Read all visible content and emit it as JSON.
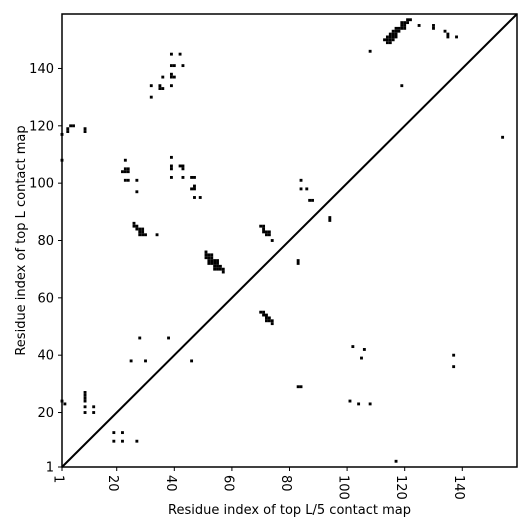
{
  "chart_data": {
    "type": "scatter",
    "title": "",
    "xlabel": "Residue index of top L/5 contact map",
    "ylabel": "Residue index of top L contact map",
    "xlim": [
      1,
      159
    ],
    "ylim": [
      1,
      159
    ],
    "xticks": [
      1,
      20,
      40,
      60,
      80,
      100,
      120,
      140
    ],
    "yticks": [
      1,
      20,
      40,
      60,
      80,
      100,
      120,
      140
    ],
    "grid": false,
    "diagonal": true,
    "marker": "square",
    "color": "#000000",
    "series": [
      {
        "name": "",
        "points": [
          [
            1,
            117
          ],
          [
            1,
            108
          ],
          [
            1,
            24
          ],
          [
            2,
            23
          ],
          [
            3,
            118
          ],
          [
            3,
            119
          ],
          [
            4,
            120
          ],
          [
            5,
            120
          ],
          [
            9,
            118
          ],
          [
            9,
            119
          ],
          [
            9,
            27
          ],
          [
            9,
            26
          ],
          [
            9,
            25
          ],
          [
            9,
            24
          ],
          [
            9,
            22
          ],
          [
            9,
            20
          ],
          [
            12,
            22
          ],
          [
            12,
            20
          ],
          [
            19,
            13
          ],
          [
            19,
            10
          ],
          [
            22,
            13
          ],
          [
            22,
            10
          ],
          [
            27,
            10
          ],
          [
            22,
            104
          ],
          [
            23,
            104
          ],
          [
            23,
            105
          ],
          [
            24,
            105
          ],
          [
            24,
            104
          ],
          [
            23,
            101
          ],
          [
            24,
            101
          ],
          [
            23,
            108
          ],
          [
            27,
            101
          ],
          [
            27,
            97
          ],
          [
            26,
            86
          ],
          [
            26,
            85
          ],
          [
            27,
            85
          ],
          [
            27,
            84
          ],
          [
            28,
            84
          ],
          [
            28,
            83
          ],
          [
            28,
            82
          ],
          [
            29,
            84
          ],
          [
            29,
            83
          ],
          [
            29,
            82
          ],
          [
            30,
            82
          ],
          [
            34,
            82
          ],
          [
            28,
            46
          ],
          [
            25,
            38
          ],
          [
            30,
            38
          ],
          [
            38,
            46
          ],
          [
            46,
            38
          ],
          [
            32,
            130
          ],
          [
            32,
            134
          ],
          [
            35,
            134
          ],
          [
            35,
            133
          ],
          [
            36,
            133
          ],
          [
            36,
            137
          ],
          [
            39,
            137
          ],
          [
            39,
            138
          ],
          [
            39,
            134
          ],
          [
            39,
            141
          ],
          [
            40,
            141
          ],
          [
            39,
            145
          ],
          [
            40,
            137
          ],
          [
            42,
            145
          ],
          [
            43,
            141
          ],
          [
            39,
            109
          ],
          [
            39,
            106
          ],
          [
            39,
            105
          ],
          [
            39,
            102
          ],
          [
            42,
            106
          ],
          [
            43,
            106
          ],
          [
            43,
            105
          ],
          [
            43,
            102
          ],
          [
            46,
            102
          ],
          [
            47,
            102
          ],
          [
            46,
            98
          ],
          [
            47,
            98
          ],
          [
            47,
            99
          ],
          [
            47,
            95
          ],
          [
            49,
            95
          ],
          [
            51,
            76
          ],
          [
            51,
            75
          ],
          [
            51,
            74
          ],
          [
            52,
            75
          ],
          [
            52,
            74
          ],
          [
            52,
            73
          ],
          [
            52,
            72
          ],
          [
            53,
            75
          ],
          [
            53,
            74
          ],
          [
            53,
            73
          ],
          [
            53,
            72
          ],
          [
            54,
            73
          ],
          [
            54,
            72
          ],
          [
            54,
            71
          ],
          [
            54,
            70
          ],
          [
            55,
            73
          ],
          [
            55,
            72
          ],
          [
            55,
            71
          ],
          [
            55,
            70
          ],
          [
            56,
            71
          ],
          [
            56,
            70
          ],
          [
            57,
            70
          ],
          [
            57,
            69
          ],
          [
            70,
            85
          ],
          [
            71,
            85
          ],
          [
            71,
            84
          ],
          [
            71,
            83
          ],
          [
            72,
            83
          ],
          [
            72,
            82
          ],
          [
            73,
            83
          ],
          [
            73,
            82
          ],
          [
            74,
            80
          ],
          [
            70,
            55
          ],
          [
            71,
            55
          ],
          [
            71,
            54
          ],
          [
            72,
            54
          ],
          [
            72,
            53
          ],
          [
            72,
            52
          ],
          [
            73,
            53
          ],
          [
            73,
            52
          ],
          [
            74,
            52
          ],
          [
            74,
            51
          ],
          [
            83,
            73
          ],
          [
            83,
            72
          ],
          [
            83,
            29
          ],
          [
            84,
            29
          ],
          [
            84,
            101
          ],
          [
            84,
            98
          ],
          [
            86,
            98
          ],
          [
            87,
            94
          ],
          [
            88,
            94
          ],
          [
            94,
            88
          ],
          [
            94,
            87
          ],
          [
            101,
            24
          ],
          [
            102,
            43
          ],
          [
            104,
            23
          ],
          [
            105,
            39
          ],
          [
            106,
            42
          ],
          [
            108,
            23
          ],
          [
            108,
            146
          ],
          [
            113,
            150
          ],
          [
            114,
            150
          ],
          [
            115,
            150
          ],
          [
            114,
            149
          ],
          [
            115,
            149
          ],
          [
            115,
            151
          ],
          [
            114,
            151
          ],
          [
            115,
            152
          ],
          [
            116,
            152
          ],
          [
            116,
            151
          ],
          [
            116,
            150
          ],
          [
            117,
            153
          ],
          [
            117,
            152
          ],
          [
            117,
            151
          ],
          [
            116,
            153
          ],
          [
            117,
            154
          ],
          [
            118,
            154
          ],
          [
            118,
            153
          ],
          [
            119,
            155
          ],
          [
            119,
            154
          ],
          [
            119,
            156
          ],
          [
            120,
            156
          ],
          [
            120,
            155
          ],
          [
            120,
            154
          ],
          [
            121,
            157
          ],
          [
            121,
            156
          ],
          [
            122,
            157
          ],
          [
            125,
            155
          ],
          [
            130,
            154
          ],
          [
            130,
            155
          ],
          [
            134,
            153
          ],
          [
            135,
            152
          ],
          [
            135,
            151
          ],
          [
            138,
            151
          ],
          [
            119,
            134
          ],
          [
            117,
            3
          ],
          [
            137,
            40
          ],
          [
            137,
            36
          ],
          [
            154,
            116
          ]
        ]
      }
    ]
  }
}
